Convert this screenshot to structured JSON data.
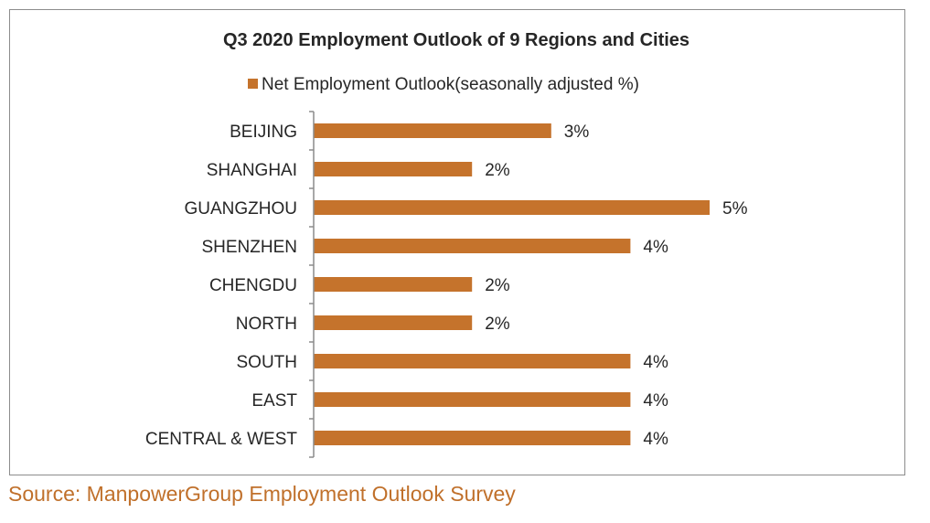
{
  "chart_data": {
    "type": "bar",
    "orientation": "horizontal",
    "title": "Q3 2020 Employment Outlook of 9 Regions and Cities",
    "legend": {
      "position": "top",
      "entries": [
        "Net Employment Outlook(seasonally adjusted %)"
      ]
    },
    "categories": [
      "BEIJING",
      "SHANGHAI",
      "GUANGZHOU",
      "SHENZHEN",
      "CHENGDU",
      "NORTH",
      "SOUTH",
      "EAST",
      "CENTRAL & WEST"
    ],
    "series": [
      {
        "name": "Net Employment Outlook(seasonally adjusted %)",
        "values": [
          3,
          2,
          5,
          4,
          2,
          2,
          4,
          4,
          4
        ],
        "data_labels": [
          "3%",
          "2%",
          "5%",
          "4%",
          "2%",
          "2%",
          "4%",
          "4%",
          "4%"
        ],
        "color": "#c5732c"
      }
    ],
    "xlim": [
      0,
      5
    ],
    "grid": false
  },
  "source": "Source: ManpowerGroup Employment Outlook Survey",
  "colors": {
    "bar": "#c5732c",
    "source_text": "#c0702b",
    "axis": "#8c8c8c",
    "text": "#262626"
  }
}
